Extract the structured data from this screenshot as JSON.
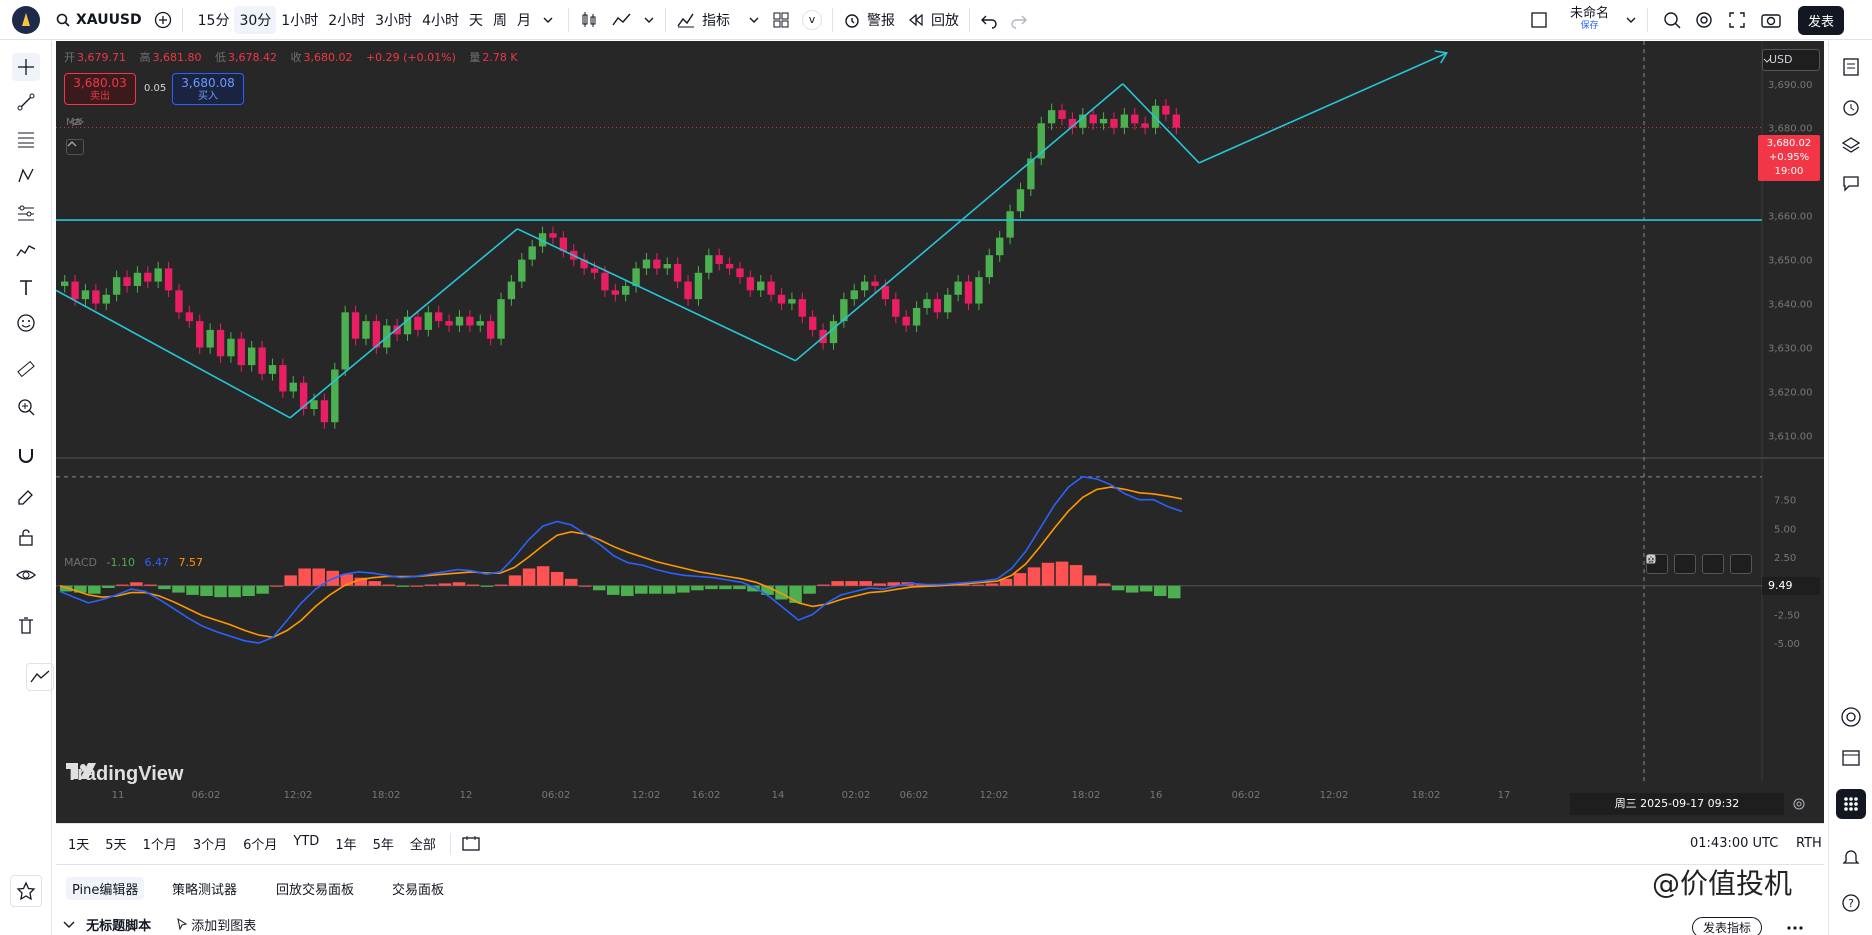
{
  "topbar": {
    "symbol": "XAUUSD",
    "timeframes": [
      "15分",
      "30分",
      "1小时",
      "2小时",
      "3小时",
      "4小时",
      "天",
      "周",
      "月"
    ],
    "active_timeframe": "30分",
    "indicators_label": "指标",
    "v_label": "v",
    "alert_label": "警报",
    "replay_label": "回放",
    "layout_name": "未命名",
    "layout_sub": "保存",
    "publish_label": "发表"
  },
  "legend": {
    "open_label": "开",
    "open": "3,679.71",
    "high_label": "高",
    "high": "3,681.80",
    "low_label": "低",
    "low": "3,678.42",
    "close_label": "收",
    "close": "3,680.02",
    "change": "+0.29 (+0.01%)",
    "volume_label": "量",
    "volume": "2.78 K"
  },
  "trade": {
    "sell_price": "3,680.03",
    "sell_label": "卖出",
    "spread": "0.05",
    "buy_price": "3,680.08",
    "buy_label": "买入"
  },
  "ma_label": "MA",
  "currency": "USD",
  "price_axis": [
    "3,690.00",
    "3,680.00",
    "3,670.00",
    "3,660.00",
    "3,650.00",
    "3,640.00",
    "3,630.00",
    "3,620.00",
    "3,610.00"
  ],
  "last_price": {
    "value": "3,680.02",
    "change": "+0.95%",
    "countdown": "19:00"
  },
  "macd": {
    "label": "MACD",
    "hist": "-1.10",
    "macd": "6.47",
    "signal": "7.57",
    "axis": [
      "7.50",
      "5.00",
      "2.50",
      "0.00",
      "-2.50",
      "-5.00"
    ],
    "crosshair_value": "9.49"
  },
  "time_axis": [
    "11",
    "06:02",
    "12:02",
    "18:02",
    "12",
    "06:02",
    "12:02",
    "16:02",
    "14",
    "02:02",
    "06:02",
    "12:02",
    "18:02",
    "16",
    "06:02",
    "12:02",
    "18:02",
    "17"
  ],
  "crosshair_date": "周三 2025-09-17   09:32",
  "brand": "TradingView",
  "ranges": [
    "1天",
    "5天",
    "1个月",
    "3个月",
    "6个月",
    "YTD",
    "1年",
    "5年",
    "全部"
  ],
  "utc_time": "01:43:00 UTC",
  "rth": "RTH",
  "bottom_tabs": [
    "Pine编辑器",
    "策略测试器",
    "回放交易面板",
    "交易面板"
  ],
  "script_name": "无标题脚本",
  "add_to_chart": "添加到图表",
  "publish_indicator": "发表指标",
  "watermark": "@价值投机",
  "colors": {
    "up": "#4caf50",
    "down": "#e91e63",
    "trendline": "#26c6da",
    "macd_line": "#2962ff",
    "signal_line": "#ff9800",
    "hist_pos": "#ff5252",
    "hist_neg": "#4caf50",
    "bg": "#272727"
  },
  "chart_data": {
    "type": "line",
    "price_ylim": [
      3606,
      3697
    ],
    "candles_close": [
      3645,
      3641,
      3643,
      3640,
      3642,
      3646,
      3644,
      3647,
      3645,
      3648,
      3643,
      3638,
      3636,
      3630,
      3634,
      3628,
      3632,
      3626,
      3630,
      3624,
      3626,
      3620,
      3622,
      3616,
      3618,
      3613,
      3625,
      3638,
      3632,
      3636,
      3630,
      3635,
      3633,
      3637,
      3634,
      3638,
      3636,
      3635,
      3637,
      3635,
      3636,
      3632,
      3641,
      3645,
      3650,
      3653,
      3656,
      3655,
      3652,
      3650,
      3648,
      3647,
      3643,
      3642,
      3644,
      3648,
      3650,
      3648,
      3649,
      3645,
      3641,
      3647,
      3651,
      3649,
      3648,
      3646,
      3643,
      3645,
      3642,
      3640,
      3641,
      3637,
      3634,
      3631,
      3636,
      3641,
      3643,
      3645,
      3644,
      3641,
      3637,
      3635,
      3639,
      3641,
      3638,
      3642,
      3645,
      3640,
      3646,
      3651,
      3655,
      3661,
      3666,
      3673,
      3681,
      3684,
      3682,
      3680,
      3683,
      3681,
      3682,
      3680,
      3683,
      3681,
      3680,
      3685,
      3683,
      3680
    ],
    "trendlines": [
      {
        "x": [
          0,
          0.138
        ],
        "y": [
          3643,
          3614
        ]
      },
      {
        "x": [
          0.138,
          0.272
        ],
        "y": [
          3614,
          3657
        ]
      },
      {
        "x": [
          0.272,
          0.436
        ],
        "y": [
          3657,
          3627
        ]
      },
      {
        "x": [
          0.436,
          0.629
        ],
        "y": [
          3627,
          3690
        ]
      },
      {
        "x": [
          0.629,
          0.674
        ],
        "y": [
          3690,
          3672
        ]
      },
      {
        "x": [
          0.674,
          0.82
        ],
        "y": [
          3672,
          3697
        ]
      }
    ],
    "horizontal_line": 3659,
    "macd_ylim": [
      -7,
      10
    ],
    "macd_line": [
      -0.5,
      -1,
      -1.5,
      -1.2,
      -0.8,
      -0.3,
      -0.5,
      -1.2,
      -2,
      -2.8,
      -3.5,
      -4,
      -4.4,
      -4.8,
      -5,
      -4.5,
      -3,
      -1.5,
      -0.3,
      0.5,
      1,
      1.2,
      1.1,
      0.9,
      0.7,
      0.8,
      1,
      1.2,
      1.4,
      1.3,
      1,
      1.2,
      2.5,
      4,
      5.2,
      5.6,
      5.3,
      4.5,
      3.6,
      2.6,
      2,
      1.8,
      1.4,
      1.1,
      0.9,
      0.8,
      0.7,
      0.5,
      0.3,
      -0.2,
      -1,
      -2,
      -3,
      -2.5,
      -1.5,
      -0.8,
      -0.5,
      -0.2,
      -0.3,
      0,
      0.2,
      0.1,
      0.1,
      0.2,
      0.3,
      0.4,
      0.6,
      1.5,
      3,
      5,
      7,
      8.6,
      9.5,
      9.3,
      8.8,
      8,
      7.5,
      7.5,
      6.9,
      6.47
    ],
    "signal_line": [
      0,
      -0.4,
      -0.8,
      -1,
      -0.9,
      -0.6,
      -0.6,
      -0.9,
      -1.4,
      -2,
      -2.6,
      -3,
      -3.4,
      -3.9,
      -4.3,
      -4.5,
      -3.9,
      -3,
      -1.8,
      -0.8,
      0,
      0.5,
      0.7,
      0.8,
      0.8,
      0.8,
      0.9,
      1,
      1.1,
      1.2,
      1.1,
      1.1,
      1.6,
      2.5,
      3.5,
      4.4,
      4.7,
      4.5,
      4,
      3.4,
      2.9,
      2.5,
      2.1,
      1.8,
      1.5,
      1.2,
      1,
      0.8,
      0.6,
      0.3,
      -0.2,
      -0.8,
      -1.5,
      -1.8,
      -1.6,
      -1.2,
      -0.9,
      -0.6,
      -0.5,
      -0.3,
      -0.1,
      -0.05,
      0,
      0.1,
      0.2,
      0.3,
      0.4,
      0.9,
      1.9,
      3.4,
      5,
      6.5,
      7.7,
      8.4,
      8.6,
      8.4,
      8.1,
      8,
      7.8,
      7.57
    ],
    "histogram": [
      -0.5,
      -0.6,
      -0.7,
      -0.2,
      0.1,
      0.3,
      0.1,
      -0.3,
      -0.6,
      -0.8,
      -0.9,
      -1,
      -1,
      -0.9,
      -0.7,
      0,
      0.9,
      1.5,
      1.5,
      1.3,
      1,
      0.7,
      0.4,
      0.1,
      -0.1,
      0,
      0.1,
      0.2,
      0.3,
      0.1,
      -0.1,
      0.1,
      0.9,
      1.5,
      1.7,
      1.2,
      0.6,
      0,
      -0.4,
      -0.8,
      -0.9,
      -0.7,
      -0.7,
      -0.7,
      -0.6,
      -0.4,
      -0.3,
      -0.3,
      -0.3,
      -0.5,
      -0.8,
      -1.2,
      -1.5,
      -0.7,
      0.1,
      0.4,
      0.4,
      0.4,
      0.2,
      0.3,
      0.3,
      0.15,
      0.1,
      0.1,
      0.1,
      0.1,
      0.2,
      0.6,
      1.1,
      1.6,
      2,
      2.1,
      1.8,
      0.9,
      0.2,
      -0.4,
      -0.6,
      -0.5,
      -0.9,
      -1.1
    ]
  }
}
